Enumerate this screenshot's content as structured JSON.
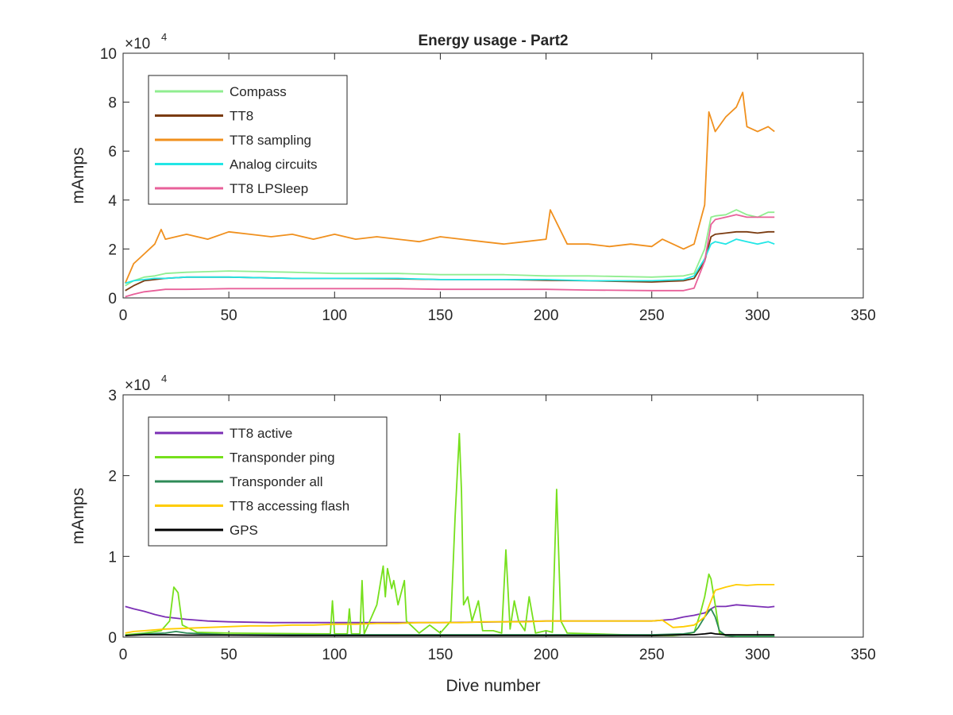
{
  "figure": {
    "title": "Energy usage - Part2",
    "xlabel": "Dive number"
  },
  "chart_data": [
    {
      "type": "line",
      "title": "Energy usage - Part2",
      "xlabel": "",
      "ylabel": "mAmps",
      "exponent_label": "×10",
      "exponent_power": "4",
      "xlim": [
        0,
        350
      ],
      "ylim": [
        0,
        100000
      ],
      "xticks": [
        "0",
        "50",
        "100",
        "150",
        "200",
        "250",
        "300",
        "350"
      ],
      "yticks": [
        "0",
        "2",
        "4",
        "6",
        "8",
        "10"
      ],
      "legend_position": "top-left",
      "series": [
        {
          "name": "Compass",
          "color": "#90ee90",
          "x": [
            1,
            5,
            10,
            15,
            20,
            30,
            50,
            80,
            100,
            130,
            150,
            180,
            200,
            220,
            250,
            265,
            270,
            275,
            278,
            280,
            285,
            290,
            295,
            300,
            305,
            308
          ],
          "y": [
            5000,
            7000,
            8500,
            9000,
            10000,
            10500,
            11000,
            10500,
            10000,
            10000,
            9500,
            9500,
            9000,
            9000,
            8500,
            9000,
            10000,
            20000,
            33000,
            33500,
            34000,
            36000,
            34000,
            33000,
            35000,
            35000
          ]
        },
        {
          "name": "TT8",
          "color": "#7a3b10",
          "x": [
            1,
            5,
            10,
            15,
            20,
            30,
            50,
            80,
            100,
            130,
            150,
            180,
            200,
            220,
            250,
            265,
            270,
            275,
            278,
            280,
            285,
            290,
            295,
            300,
            305,
            308
          ],
          "y": [
            3000,
            5000,
            7000,
            7500,
            8000,
            8500,
            8500,
            8000,
            8000,
            7800,
            7500,
            7500,
            7200,
            7000,
            6500,
            7000,
            8000,
            15000,
            25000,
            26000,
            26500,
            27000,
            27000,
            26500,
            27000,
            27000
          ]
        },
        {
          "name": "TT8 sampling",
          "color": "#f0901e",
          "x": [
            1,
            5,
            10,
            15,
            18,
            20,
            30,
            40,
            50,
            60,
            70,
            80,
            90,
            100,
            110,
            120,
            130,
            140,
            150,
            160,
            170,
            180,
            190,
            200,
            202,
            210,
            220,
            230,
            240,
            250,
            255,
            260,
            265,
            270,
            275,
            277,
            280,
            285,
            290,
            293,
            295,
            300,
            305,
            308
          ],
          "y": [
            6000,
            14000,
            18000,
            22000,
            28000,
            24000,
            26000,
            24000,
            27000,
            26000,
            25000,
            26000,
            24000,
            26000,
            24000,
            25000,
            24000,
            23000,
            25000,
            24000,
            23000,
            22000,
            23000,
            24000,
            36000,
            22000,
            22000,
            21000,
            22000,
            21000,
            24000,
            22000,
            20000,
            22000,
            38000,
            76000,
            68000,
            74000,
            78000,
            84000,
            70000,
            68000,
            70000,
            68000
          ]
        },
        {
          "name": "Analog circuits",
          "color": "#22e6e6",
          "x": [
            1,
            5,
            10,
            15,
            20,
            30,
            50,
            80,
            100,
            130,
            150,
            180,
            200,
            220,
            250,
            265,
            270,
            275,
            278,
            280,
            285,
            290,
            295,
            300,
            305,
            308
          ],
          "y": [
            6000,
            7000,
            7500,
            8000,
            8000,
            8500,
            8500,
            8000,
            8000,
            8000,
            7500,
            7500,
            7500,
            7000,
            7000,
            7500,
            9000,
            16000,
            22000,
            23000,
            22000,
            24000,
            23000,
            22000,
            23000,
            22000
          ]
        },
        {
          "name": "TT8 LPSleep",
          "color": "#e8609a",
          "x": [
            1,
            5,
            10,
            15,
            20,
            30,
            50,
            80,
            100,
            130,
            150,
            180,
            200,
            220,
            250,
            265,
            270,
            275,
            278,
            280,
            285,
            290,
            295,
            300,
            305,
            308
          ],
          "y": [
            500,
            1500,
            2500,
            3000,
            3500,
            3500,
            3800,
            3800,
            3800,
            3800,
            3500,
            3500,
            3500,
            3200,
            3000,
            3000,
            4000,
            15000,
            30000,
            32000,
            33000,
            34000,
            33000,
            33000,
            33000,
            33000
          ]
        }
      ]
    },
    {
      "type": "line",
      "title": "",
      "xlabel": "Dive number",
      "ylabel": "mAmps",
      "exponent_label": "×10",
      "exponent_power": "4",
      "xlim": [
        0,
        350
      ],
      "ylim": [
        0,
        30000
      ],
      "xticks": [
        "0",
        "50",
        "100",
        "150",
        "200",
        "250",
        "300",
        "350"
      ],
      "yticks": [
        "0",
        "1",
        "2",
        "3"
      ],
      "legend_position": "top-left",
      "series": [
        {
          "name": "TT8 active",
          "color": "#7b2fb5",
          "x": [
            1,
            5,
            10,
            15,
            20,
            30,
            40,
            50,
            70,
            100,
            130,
            150,
            180,
            200,
            220,
            250,
            260,
            265,
            270,
            275,
            278,
            280,
            285,
            290,
            300,
            305,
            308
          ],
          "y": [
            3800,
            3500,
            3200,
            2800,
            2500,
            2200,
            2000,
            1900,
            1800,
            1800,
            1800,
            1800,
            1900,
            2000,
            2000,
            2000,
            2200,
            2500,
            2700,
            3000,
            3500,
            3800,
            3800,
            4000,
            3800,
            3700,
            3800
          ]
        },
        {
          "name": "Transponder ping",
          "color": "#76e01c",
          "x": [
            1,
            10,
            18,
            22,
            24,
            26,
            28,
            35,
            50,
            98,
            99,
            100,
            106,
            107,
            108,
            112,
            113,
            114,
            120,
            123,
            124,
            125,
            127,
            128,
            130,
            133,
            134,
            140,
            145,
            150,
            155,
            157,
            159,
            160,
            161,
            163,
            165,
            168,
            170,
            175,
            179,
            181,
            183,
            185,
            187,
            190,
            192,
            195,
            200,
            203,
            205,
            207,
            210,
            250,
            260,
            265,
            270,
            273,
            275,
            277,
            278,
            280,
            282,
            285,
            290,
            300,
            308
          ],
          "y": [
            300,
            500,
            800,
            2000,
            6200,
            5500,
            1500,
            600,
            500,
            400,
            4500,
            400,
            400,
            3500,
            400,
            400,
            7000,
            400,
            4000,
            8800,
            5000,
            8500,
            6000,
            7000,
            4000,
            7000,
            2000,
            500,
            1500,
            500,
            2000,
            15000,
            25200,
            18000,
            4000,
            5000,
            2000,
            4500,
            800,
            800,
            500,
            10800,
            1000,
            4500,
            2000,
            800,
            5000,
            500,
            800,
            600,
            18300,
            2000,
            500,
            200,
            200,
            300,
            600,
            3000,
            5000,
            7800,
            7200,
            4000,
            500,
            200,
            100,
            100,
            100
          ]
        },
        {
          "name": "Transponder all",
          "color": "#2e8b57",
          "x": [
            1,
            10,
            20,
            25,
            30,
            50,
            100,
            150,
            200,
            250,
            265,
            270,
            272,
            275,
            277,
            278,
            280,
            282,
            285,
            290,
            300,
            308
          ],
          "y": [
            200,
            400,
            500,
            700,
            500,
            300,
            300,
            300,
            300,
            300,
            400,
            600,
            1200,
            2500,
            3200,
            3500,
            2500,
            800,
            200,
            100,
            100,
            100
          ]
        },
        {
          "name": "TT8 accessing flash",
          "color": "#ffcc00",
          "x": [
            1,
            5,
            10,
            20,
            30,
            40,
            50,
            60,
            70,
            80,
            90,
            100,
            110,
            120,
            130,
            140,
            150,
            160,
            170,
            180,
            190,
            200,
            210,
            220,
            230,
            240,
            250,
            255,
            260,
            265,
            270,
            275,
            278,
            280,
            285,
            290,
            295,
            300,
            305,
            308
          ],
          "y": [
            500,
            700,
            800,
            1000,
            1100,
            1200,
            1300,
            1400,
            1400,
            1500,
            1500,
            1600,
            1600,
            1700,
            1700,
            1800,
            1800,
            1800,
            1900,
            1900,
            1900,
            2000,
            2000,
            2000,
            2000,
            2000,
            2000,
            2100,
            1200,
            1300,
            1500,
            2500,
            4500,
            5800,
            6200,
            6500,
            6400,
            6500,
            6500,
            6500
          ]
        },
        {
          "name": "GPS",
          "color": "#000000",
          "x": [
            1,
            10,
            20,
            30,
            50,
            80,
            100,
            130,
            150,
            180,
            200,
            220,
            250,
            265,
            270,
            275,
            278,
            280,
            285,
            290,
            300,
            308
          ],
          "y": [
            200,
            300,
            300,
            250,
            250,
            200,
            200,
            200,
            200,
            200,
            200,
            200,
            200,
            300,
            300,
            400,
            500,
            400,
            300,
            300,
            300,
            300
          ]
        }
      ]
    }
  ]
}
